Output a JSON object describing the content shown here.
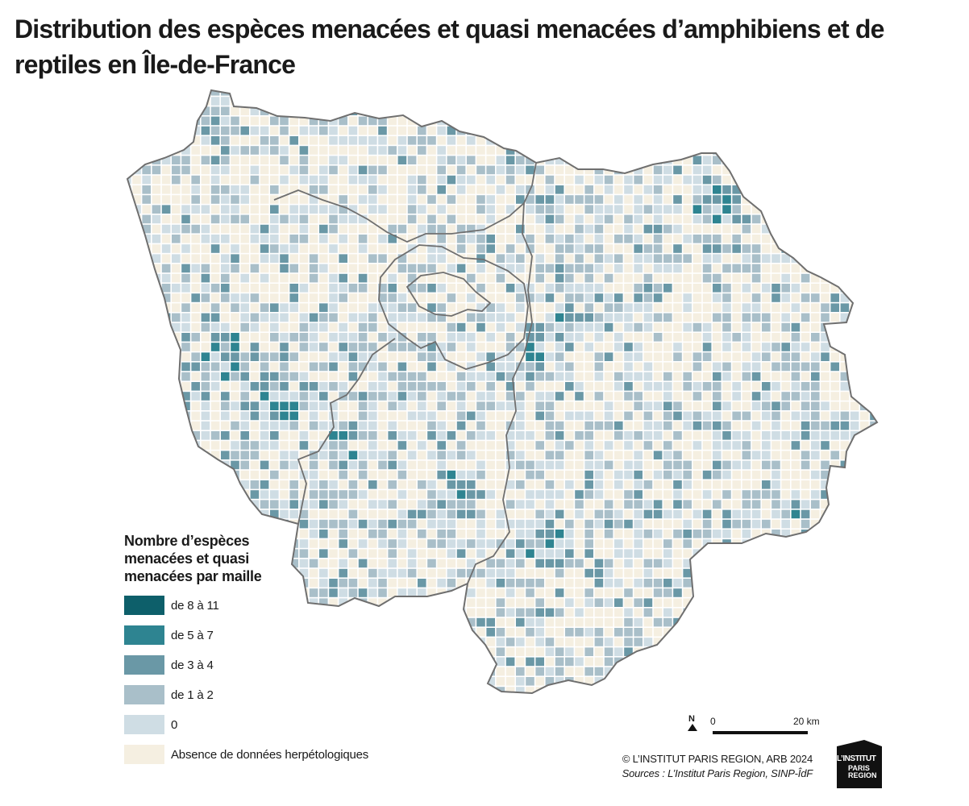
{
  "map": {
    "title": "Distribution des espèces menacées et quasi menacées d’amphibiens et de reptiles en Île-de-France"
  },
  "legend": {
    "title": "Nombre d’espèces menacées et quasi menacées par maille",
    "items": [
      {
        "label": "de 8 à 11",
        "color": "#0d5f6a"
      },
      {
        "label": "de 5 à 7",
        "color": "#2e8491"
      },
      {
        "label": "de 3 à 4",
        "color": "#6a98a6"
      },
      {
        "label": "de 1 à 2",
        "color": "#a9bfc9"
      },
      {
        "label": "0",
        "color": "#cfdde4"
      },
      {
        "label": "Absence de données herpétologiques",
        "color": "#f5efe1"
      }
    ]
  },
  "scale": {
    "north": "N",
    "start": "0",
    "end": "20 km"
  },
  "credits": {
    "copyright": "© L’INSTITUT PARIS REGION, ARB 2024",
    "sources": "Sources : L’Institut Paris Region, SINP-ÎdF"
  },
  "logo": {
    "line1": "L’INSTITUT",
    "line2": "PARIS REGION"
  }
}
